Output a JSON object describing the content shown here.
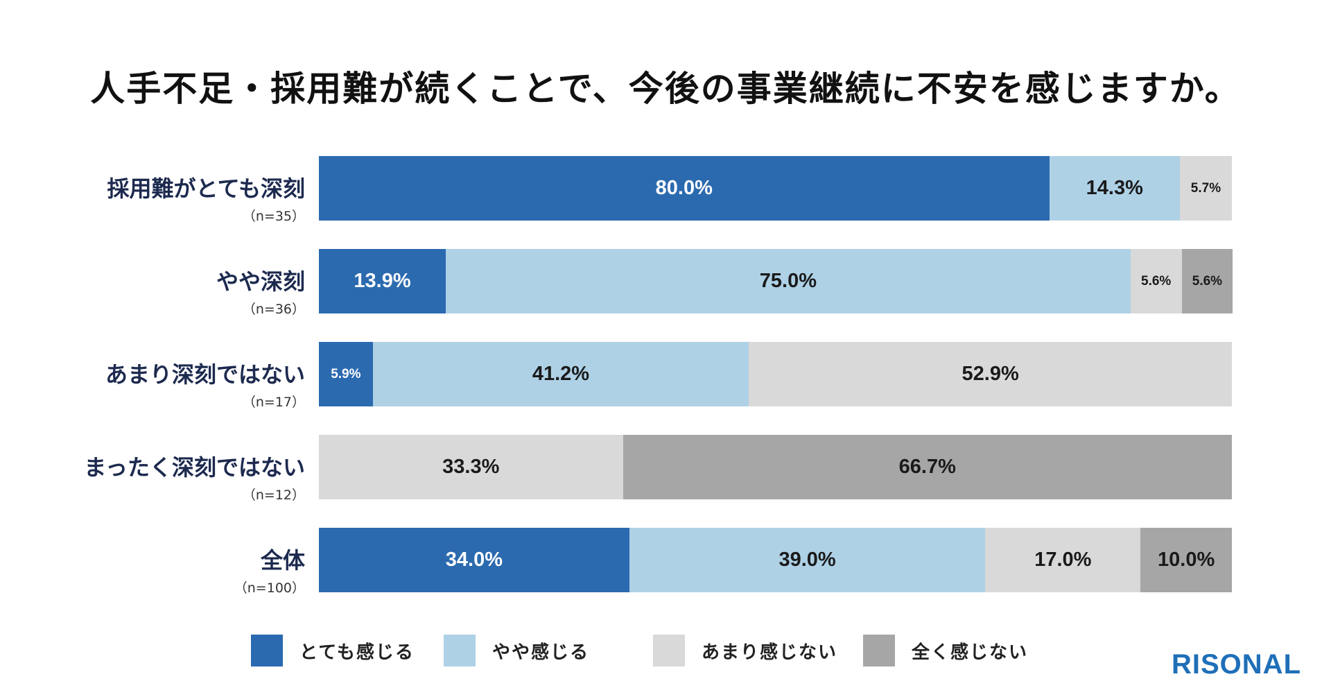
{
  "chart_data": {
    "type": "bar",
    "orientation": "horizontal",
    "stacked": "100%",
    "title": "人手不足・採用難が続くことで、今後の事業継続に不安を感じますか。",
    "categories": [
      {
        "label": "採用難がとても深刻",
        "n": "（n=35）"
      },
      {
        "label": "やや深刻",
        "n": "（n=36）"
      },
      {
        "label": "あまり深刻ではない",
        "n": "（n=17）"
      },
      {
        "label": "まったく深刻ではない",
        "n": "（n=12）"
      },
      {
        "label": "全体",
        "n": "（n=100）"
      }
    ],
    "series": [
      {
        "name": "とても感じる",
        "color": "#2b6aaf",
        "label_color": "#ffffff",
        "values": [
          80.0,
          13.9,
          5.9,
          0,
          34.0
        ],
        "labels": [
          "80.0%",
          "13.9%",
          "5.9%",
          "",
          "34.0%"
        ]
      },
      {
        "name": "やや感じる",
        "color": "#aed1e6",
        "label_color": "#1a1a1a",
        "values": [
          14.3,
          75.0,
          41.2,
          0,
          39.0
        ],
        "labels": [
          "14.3%",
          "75.0%",
          "41.2%",
          "",
          "39.0%"
        ]
      },
      {
        "name": "あまり感じない",
        "color": "#d9d9d9",
        "label_color": "#1a1a1a",
        "values": [
          5.7,
          5.6,
          52.9,
          33.3,
          17.0
        ],
        "labels": [
          "5.7%",
          "5.6%",
          "52.9%",
          "33.3%",
          "17.0%"
        ]
      },
      {
        "name": "全く感じない",
        "color": "#a6a6a6",
        "label_color": "#1a1a1a",
        "values": [
          0,
          5.6,
          0,
          66.7,
          10.0
        ],
        "labels": [
          "",
          "5.6%",
          "",
          "66.7%",
          "10.0%"
        ]
      }
    ],
    "xlim": [
      0,
      100
    ],
    "legend": "bottom"
  },
  "brand": {
    "logo_text": "RISONAL",
    "logo_color": "#1f6fb8"
  }
}
